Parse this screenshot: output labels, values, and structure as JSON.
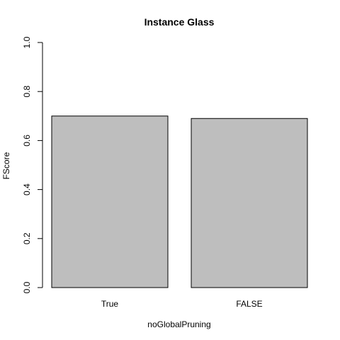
{
  "chart_data": {
    "type": "bar",
    "title": "Instance Glass",
    "xlabel": "noGlobalPruning",
    "ylabel": "FScore",
    "categories": [
      "True",
      "FALSE"
    ],
    "values": [
      0.7,
      0.69
    ],
    "ylim": [
      0,
      1
    ],
    "yticks": [
      "0.0",
      "0.2",
      "0.4",
      "0.6",
      "0.8",
      "1.0"
    ],
    "bar_color": "#bebebe",
    "grid": false,
    "legend": "none"
  }
}
